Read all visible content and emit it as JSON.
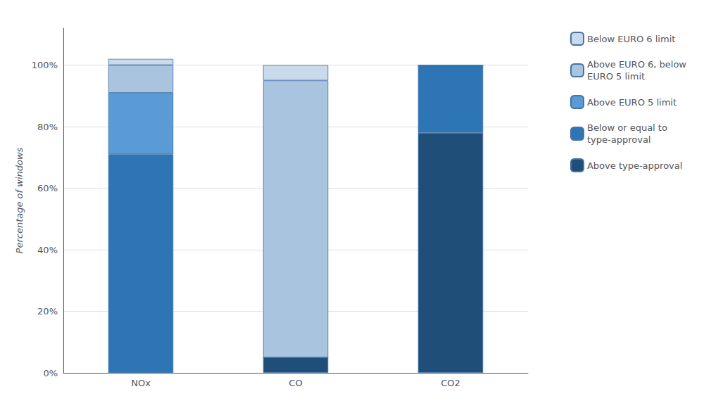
{
  "chart_data": {
    "type": "bar",
    "stacked": true,
    "categories": [
      "NOx",
      "CO",
      "CO2"
    ],
    "series": [
      {
        "name": "Above type-approval",
        "color": "#1f4e79",
        "values": [
          0,
          5,
          78
        ]
      },
      {
        "name": "Below or equal to\ntype-approval",
        "color": "#2e75b6",
        "values": [
          71,
          0,
          22
        ]
      },
      {
        "name": "Above EURO 5 limit",
        "color": "#5b9bd5",
        "values": [
          20,
          0,
          0
        ]
      },
      {
        "name": "Above EURO 6, below\nEURO 5 limit",
        "color": "#a8c4de",
        "values": [
          9,
          90,
          0
        ]
      },
      {
        "name": "Below EURO 6 limit",
        "color": "#c9daea",
        "values": [
          2,
          5,
          0
        ]
      }
    ],
    "ylabel": "Percentage of windows",
    "ylim": [
      0,
      112
    ],
    "yticks": [
      {
        "value": 0,
        "label": "0%"
      },
      {
        "value": 20,
        "label": "20%"
      },
      {
        "value": 40,
        "label": "40%"
      },
      {
        "value": 60,
        "label": "60%"
      },
      {
        "value": 80,
        "label": "80%"
      },
      {
        "value": 100,
        "label": "100%"
      }
    ],
    "grid": true,
    "legend": "right"
  }
}
